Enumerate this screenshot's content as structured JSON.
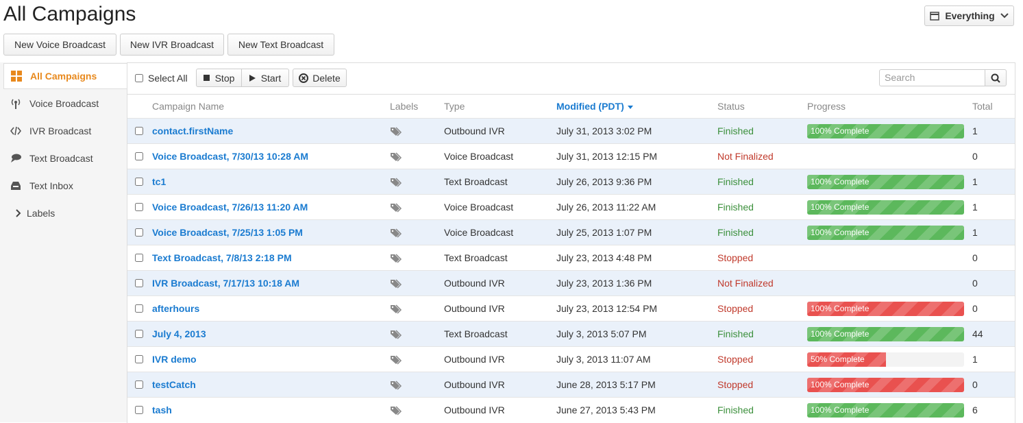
{
  "header": {
    "title": "All Campaigns",
    "filter": "Everything"
  },
  "actions": [
    "New Voice Broadcast",
    "New IVR Broadcast",
    "New Text Broadcast"
  ],
  "sidebar": {
    "items": [
      "All Campaigns",
      "Voice Broadcast",
      "IVR Broadcast",
      "Text Broadcast",
      "Text Inbox"
    ],
    "labels": "Labels"
  },
  "toolbar": {
    "select_all": "Select All",
    "stop": "Stop",
    "start": "Start",
    "delete": "Delete",
    "search": "Search"
  },
  "table": {
    "columns": [
      "Campaign Name",
      "Labels",
      "Type",
      "Modified (PDT)",
      "Status",
      "Progress",
      "Total"
    ],
    "rows": [
      {
        "name": "contact.firstName",
        "type": "Outbound IVR",
        "modified": "July 31, 2013 3:02 PM",
        "status": {
          "text": "Finished",
          "color": "#3b8f3b"
        },
        "progress": {
          "value": 100,
          "label": "100% Complete",
          "color": "#5cb85c"
        },
        "total": 1
      },
      {
        "name": "Voice Broadcast, 7/30/13 10:28 AM",
        "type": "Voice Broadcast",
        "modified": "July 31, 2013 12:15 PM",
        "status": {
          "text": "Not Finalized",
          "color": "#c0392b"
        },
        "progress": null,
        "total": 0
      },
      {
        "name": "tc1",
        "type": "Text Broadcast",
        "modified": "July 26, 2013 9:36 PM",
        "status": {
          "text": "Finished",
          "color": "#3b8f3b"
        },
        "progress": {
          "value": 100,
          "label": "100% Complete",
          "color": "#5cb85c"
        },
        "total": 1
      },
      {
        "name": "Voice Broadcast, 7/26/13 11:20 AM",
        "type": "Voice Broadcast",
        "modified": "July 26, 2013 11:22 AM",
        "status": {
          "text": "Finished",
          "color": "#3b8f3b"
        },
        "progress": {
          "value": 100,
          "label": "100% Complete",
          "color": "#5cb85c"
        },
        "total": 1
      },
      {
        "name": "Voice Broadcast, 7/25/13 1:05 PM",
        "type": "Voice Broadcast",
        "modified": "July 25, 2013 1:07 PM",
        "status": {
          "text": "Finished",
          "color": "#3b8f3b"
        },
        "progress": {
          "value": 100,
          "label": "100% Complete",
          "color": "#5cb85c"
        },
        "total": 1
      },
      {
        "name": "Text Broadcast, 7/8/13 2:18 PM",
        "type": "Text Broadcast",
        "modified": "July 23, 2013 4:48 PM",
        "status": {
          "text": "Stopped",
          "color": "#c0392b"
        },
        "progress": null,
        "total": 0
      },
      {
        "name": "IVR Broadcast, 7/17/13 10:18 AM",
        "type": "Outbound IVR",
        "modified": "July 23, 2013 1:36 PM",
        "status": {
          "text": "Not Finalized",
          "color": "#c0392b"
        },
        "progress": null,
        "total": 0
      },
      {
        "name": "afterhours",
        "type": "Outbound IVR",
        "modified": "July 23, 2013 12:54 PM",
        "status": {
          "text": "Stopped",
          "color": "#c0392b"
        },
        "progress": {
          "value": 100,
          "label": "100% Complete",
          "color": "#e9514f"
        },
        "total": 0
      },
      {
        "name": "July 4, 2013",
        "type": "Text Broadcast",
        "modified": "July 3, 2013 5:07 PM",
        "status": {
          "text": "Finished",
          "color": "#3b8f3b"
        },
        "progress": {
          "value": 100,
          "label": "100% Complete",
          "color": "#5cb85c"
        },
        "total": 44
      },
      {
        "name": "IVR demo",
        "type": "Outbound IVR",
        "modified": "July 3, 2013 11:07 AM",
        "status": {
          "text": "Stopped",
          "color": "#c0392b"
        },
        "progress": {
          "value": 50,
          "label": "50% Complete",
          "color": "#e9514f"
        },
        "total": 1
      },
      {
        "name": "testCatch",
        "type": "Outbound IVR",
        "modified": "June 28, 2013 5:17 PM",
        "status": {
          "text": "Stopped",
          "color": "#c0392b"
        },
        "progress": {
          "value": 100,
          "label": "100% Complete",
          "color": "#e9514f"
        },
        "total": 0
      },
      {
        "name": "tash",
        "type": "Outbound IVR",
        "modified": "June 27, 2013 5:43 PM",
        "status": {
          "text": "Finished",
          "color": "#3b8f3b"
        },
        "progress": {
          "value": 100,
          "label": "100% Complete",
          "color": "#5cb85c"
        },
        "total": 6
      }
    ]
  }
}
